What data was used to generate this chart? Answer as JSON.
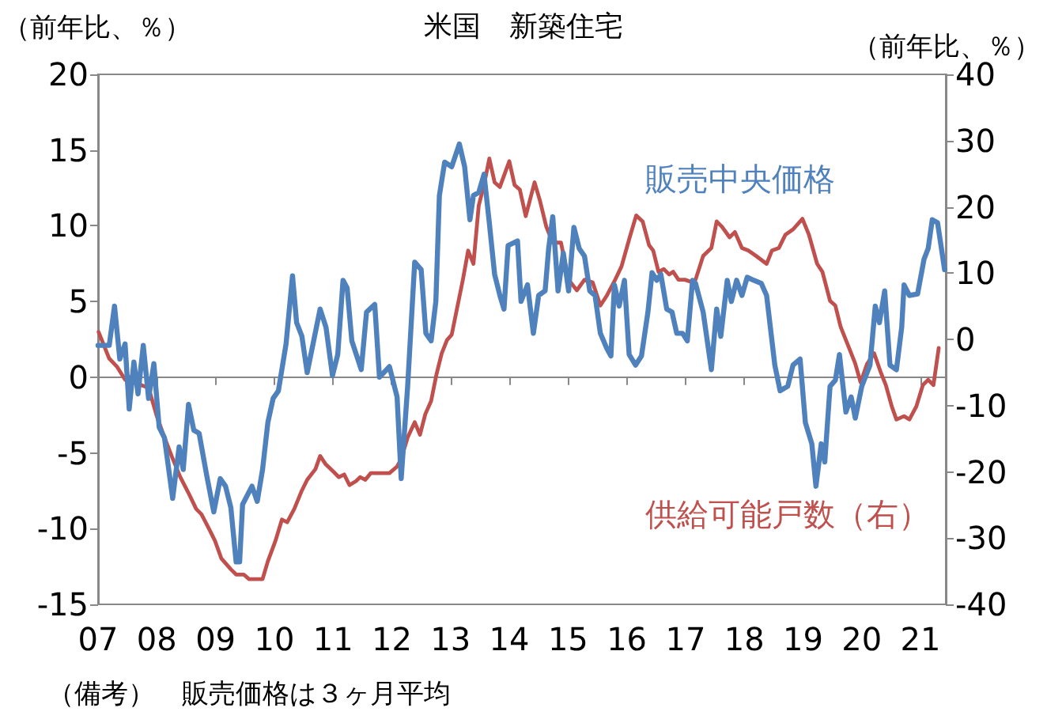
{
  "chart_data": {
    "type": "line",
    "title": "米国　新築住宅",
    "ylabel": "（前年比、％）",
    "y2label": "（前年比、％）",
    "annotations": [
      "（備考）　販売価格は３ヶ月平均"
    ],
    "xlim": [
      2007,
      2021.43
    ],
    "xticks": [
      {
        "value": 2007,
        "label": "07"
      },
      {
        "value": 2008,
        "label": "08"
      },
      {
        "value": 2009,
        "label": "09"
      },
      {
        "value": 2010,
        "label": "10"
      },
      {
        "value": 2011,
        "label": "11"
      },
      {
        "value": 2012,
        "label": "12"
      },
      {
        "value": 2013,
        "label": "13"
      },
      {
        "value": 2014,
        "label": "14"
      },
      {
        "value": 2015,
        "label": "15"
      },
      {
        "value": 2016,
        "label": "16"
      },
      {
        "value": 2017,
        "label": "17"
      },
      {
        "value": 2018,
        "label": "18"
      },
      {
        "value": 2019,
        "label": "19"
      },
      {
        "value": 2020,
        "label": "20"
      },
      {
        "value": 2021,
        "label": "21"
      }
    ],
    "ylim": [
      -15,
      20
    ],
    "yticks": [
      -15,
      -10,
      -5,
      0,
      5,
      10,
      15,
      20
    ],
    "y2lim": [
      -40,
      40
    ],
    "y2ticks": [
      -40,
      -30,
      -20,
      -10,
      0,
      10,
      20,
      30,
      40
    ],
    "legend": false,
    "marker": "none",
    "line_style": "solid",
    "series": [
      {
        "name": "販売中央価格",
        "color": "#4f81bd",
        "x": [
          2007.0,
          2007.19,
          2007.28,
          2007.37,
          2007.46,
          2007.53,
          2007.61,
          2007.68,
          2007.77,
          2007.86,
          2007.95,
          2008.04,
          2008.13,
          2008.27,
          2008.38,
          2008.45,
          2008.54,
          2008.63,
          2008.72,
          2008.85,
          2008.97,
          2009.08,
          2009.17,
          2009.26,
          2009.35,
          2009.41,
          2009.46,
          2009.62,
          2009.71,
          2009.8,
          2009.89,
          2009.98,
          2010.07,
          2010.2,
          2010.31,
          2010.38,
          2010.47,
          2010.56,
          2010.78,
          2010.88,
          2010.99,
          2011.08,
          2011.17,
          2011.24,
          2011.32,
          2011.48,
          2011.57,
          2011.71,
          2011.79,
          2011.96,
          2012.09,
          2012.16,
          2012.27,
          2012.39,
          2012.5,
          2012.58,
          2012.67,
          2012.75,
          2012.81,
          2012.9,
          2013.02,
          2013.15,
          2013.24,
          2013.33,
          2013.39,
          2013.48,
          2013.57,
          2013.66,
          2013.75,
          2013.84,
          2013.91,
          2013.98,
          2014.14,
          2014.2,
          2014.31,
          2014.41,
          2014.5,
          2014.61,
          2014.67,
          2014.74,
          2014.83,
          2014.92,
          2015.01,
          2015.1,
          2015.19,
          2015.28,
          2015.37,
          2015.46,
          2015.55,
          2015.66,
          2015.73,
          2015.79,
          2015.87,
          2015.96,
          2016.04,
          2016.15,
          2016.25,
          2016.36,
          2016.43,
          2016.51,
          2016.58,
          2016.68,
          2016.77,
          2016.85,
          2016.95,
          2017.03,
          2017.12,
          2017.17,
          2017.3,
          2017.44,
          2017.53,
          2017.6,
          2017.71,
          2017.78,
          2017.87,
          2017.96,
          2018.05,
          2018.16,
          2018.29,
          2018.38,
          2018.52,
          2018.61,
          2018.74,
          2018.83,
          2018.95,
          2019.04,
          2019.15,
          2019.22,
          2019.31,
          2019.37,
          2019.46,
          2019.55,
          2019.62,
          2019.73,
          2019.82,
          2019.89,
          2020.0,
          2020.14,
          2020.23,
          2020.3,
          2020.39,
          2020.48,
          2020.59,
          2020.68,
          2020.72,
          2020.81,
          2020.95,
          2021.06,
          2021.13,
          2021.2,
          2021.29,
          2021.41
        ],
        "values": [
          2.1,
          2.1,
          4.7,
          1.2,
          2.2,
          -2.1,
          1.0,
          -1.1,
          2.1,
          -1.4,
          0.9,
          -3.3,
          -4.0,
          -8.0,
          -4.6,
          -6.1,
          -1.8,
          -3.5,
          -3.7,
          -6.5,
          -8.9,
          -6.7,
          -7.2,
          -8.6,
          -12.2,
          -12.2,
          -8.4,
          -7.2,
          -8.2,
          -6.1,
          -3.0,
          -1.4,
          -0.9,
          2.2,
          6.7,
          3.6,
          2.7,
          0.3,
          4.5,
          3.3,
          0.1,
          1.5,
          6.4,
          5.9,
          2.4,
          0.5,
          4.3,
          4.8,
          0.0,
          0.7,
          -1.3,
          -6.7,
          -0.6,
          7.6,
          7.1,
          2.9,
          2.4,
          5.0,
          12.0,
          14.2,
          13.9,
          15.4,
          13.9,
          10.4,
          12.0,
          12.2,
          13.4,
          10.2,
          6.8,
          5.4,
          4.5,
          8.7,
          9.0,
          5.0,
          6.1,
          2.9,
          5.4,
          5.7,
          8.5,
          10.6,
          5.7,
          8.2,
          5.7,
          9.9,
          8.5,
          8.0,
          5.7,
          5.4,
          2.9,
          1.9,
          1.4,
          6.1,
          4.7,
          6.4,
          1.5,
          0.8,
          1.4,
          4.3,
          6.9,
          6.4,
          6.8,
          4.5,
          4.3,
          2.9,
          2.9,
          2.4,
          6.4,
          6.2,
          4.3,
          0.5,
          4.5,
          2.7,
          6.4,
          5.0,
          6.4,
          5.4,
          6.6,
          6.4,
          6.2,
          5.4,
          0.8,
          -0.9,
          -0.6,
          0.8,
          1.2,
          -3.0,
          -4.4,
          -7.2,
          -4.4,
          -5.6,
          -0.6,
          -0.2,
          1.5,
          -2.3,
          -1.3,
          -2.7,
          -0.6,
          0.8,
          4.7,
          3.6,
          5.7,
          0.8,
          0.5,
          3.3,
          6.1,
          5.4,
          5.5,
          7.8,
          8.5,
          10.4,
          10.2,
          7.1
        ]
      },
      {
        "name": "供給可能戸数（右）",
        "color": "#c0504d",
        "axis": "y2",
        "x": [
          2007.01,
          2007.1,
          2007.19,
          2007.32,
          2007.46,
          2007.55,
          2007.64,
          2007.73,
          2007.86,
          2008.0,
          2008.13,
          2008.27,
          2008.4,
          2008.54,
          2008.67,
          2008.76,
          2008.9,
          2008.99,
          2009.1,
          2009.26,
          2009.35,
          2009.48,
          2009.57,
          2009.8,
          2009.89,
          2010.02,
          2010.13,
          2010.22,
          2010.34,
          2010.47,
          2010.56,
          2010.7,
          2010.78,
          2010.87,
          2011.01,
          2011.1,
          2011.19,
          2011.28,
          2011.39,
          2011.46,
          2011.55,
          2011.64,
          2011.77,
          2011.96,
          2012.09,
          2012.16,
          2012.27,
          2012.39,
          2012.48,
          2012.57,
          2012.67,
          2012.76,
          2012.85,
          2012.94,
          2013.02,
          2013.1,
          2013.21,
          2013.3,
          2013.39,
          2013.48,
          2013.57,
          2013.66,
          2013.75,
          2013.84,
          2014.0,
          2014.09,
          2014.18,
          2014.28,
          2014.43,
          2014.52,
          2014.63,
          2014.74,
          2014.88,
          2015.01,
          2015.15,
          2015.28,
          2015.42,
          2015.55,
          2015.66,
          2015.78,
          2015.91,
          2016.05,
          2016.16,
          2016.27,
          2016.38,
          2016.45,
          2016.54,
          2016.63,
          2016.72,
          2016.79,
          2016.88,
          2016.99,
          2017.12,
          2017.17,
          2017.3,
          2017.44,
          2017.53,
          2017.62,
          2017.75,
          2017.84,
          2017.96,
          2018.07,
          2018.2,
          2018.38,
          2018.47,
          2018.59,
          2018.7,
          2018.83,
          2018.99,
          2019.1,
          2019.24,
          2019.33,
          2019.46,
          2019.55,
          2019.64,
          2019.73,
          2019.82,
          2019.89,
          2019.98,
          2020.09,
          2020.21,
          2020.32,
          2020.41,
          2020.51,
          2020.59,
          2020.72,
          2020.81,
          2020.93,
          2021.04,
          2021.13,
          2021.22,
          2021.31
        ],
        "values": [
          1.1,
          -0.9,
          -2.9,
          -4.1,
          -6.1,
          -5.7,
          -5.7,
          -6.9,
          -7.3,
          -11.6,
          -14.8,
          -18.0,
          -20.8,
          -23.2,
          -25.6,
          -26.4,
          -28.8,
          -30.4,
          -33.1,
          -34.7,
          -35.5,
          -35.5,
          -36.2,
          -36.2,
          -33.5,
          -30.4,
          -27.2,
          -27.6,
          -25.6,
          -22.8,
          -21.2,
          -19.6,
          -17.6,
          -18.8,
          -20.0,
          -20.8,
          -20.4,
          -22.0,
          -21.4,
          -20.8,
          -21.2,
          -20.2,
          -20.2,
          -20.2,
          -19.2,
          -18.0,
          -14.8,
          -12.5,
          -14.4,
          -11.3,
          -9.3,
          -5.3,
          -2.1,
          -0.1,
          0.7,
          4.2,
          9.0,
          13.4,
          11.4,
          20.2,
          23.3,
          27.3,
          23.7,
          23.0,
          26.9,
          23.3,
          22.6,
          18.6,
          23.7,
          21.0,
          17.0,
          14.6,
          14.6,
          9.0,
          7.4,
          9.0,
          8.6,
          5.1,
          6.6,
          8.6,
          11.0,
          15.4,
          18.7,
          17.8,
          14.2,
          13.4,
          10.2,
          10.6,
          9.8,
          10.2,
          9.0,
          9.0,
          8.6,
          9.0,
          12.6,
          13.8,
          17.8,
          17.0,
          15.4,
          16.2,
          13.8,
          13.4,
          12.6,
          11.4,
          13.4,
          13.8,
          15.8,
          16.6,
          18.2,
          15.8,
          11.4,
          10.2,
          5.8,
          5.1,
          1.9,
          -0.1,
          -2.1,
          -3.7,
          -6.5,
          -3.7,
          -2.1,
          -4.9,
          -6.9,
          -10.1,
          -12.1,
          -11.6,
          -12.1,
          -10.1,
          -6.9,
          -6.1,
          -6.9,
          -1.3
        ]
      }
    ]
  }
}
